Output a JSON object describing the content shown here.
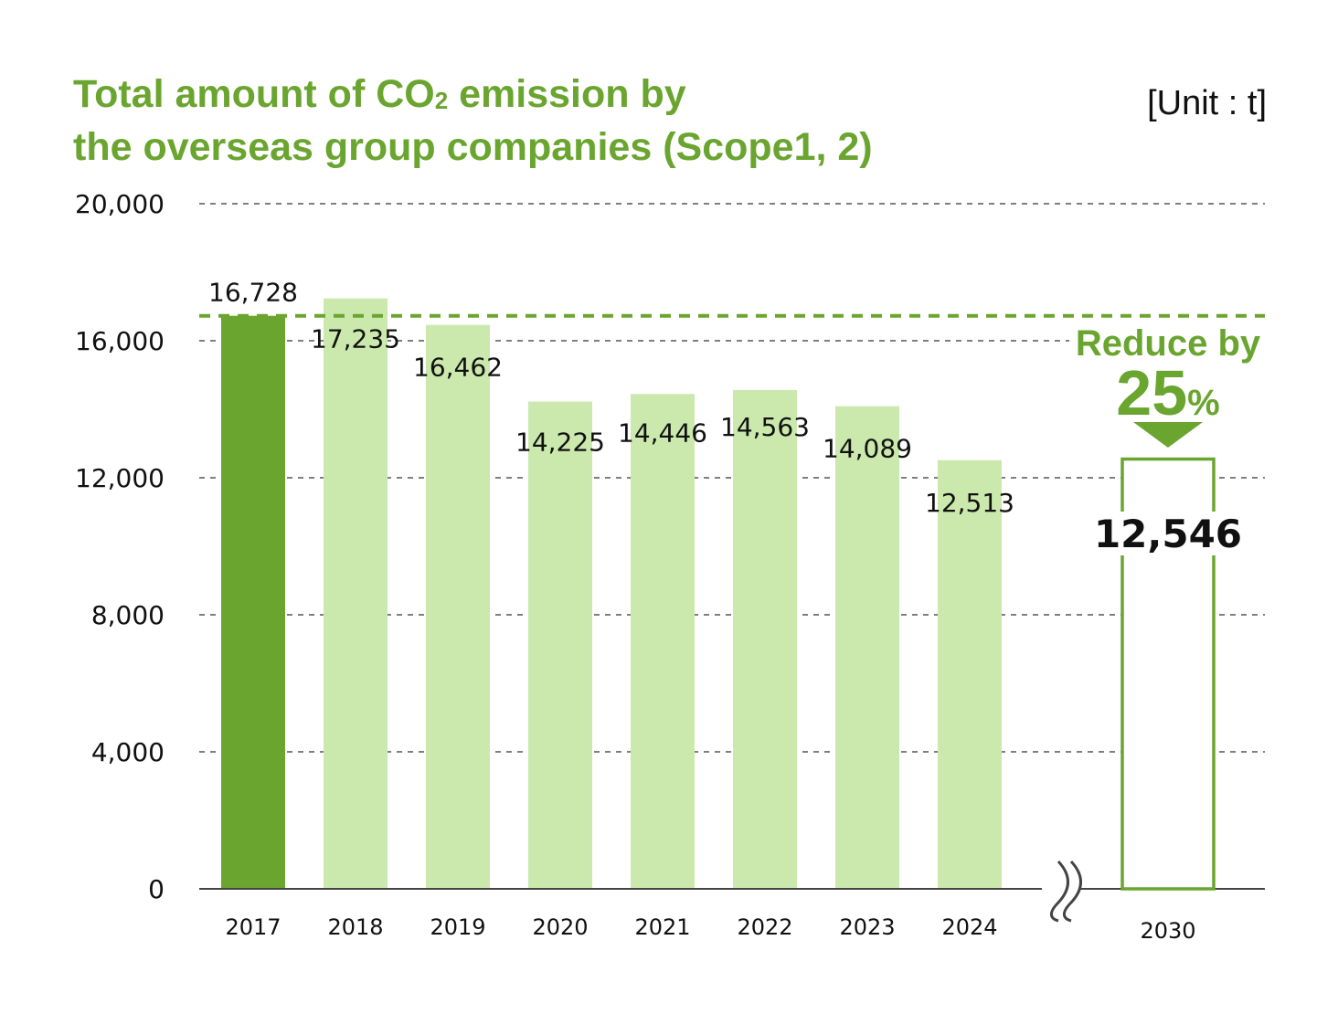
{
  "title_parts": {
    "line1_before": "Total amount of CO",
    "line1_sub": "2",
    "line1_after": " emission by",
    "line2": "the overseas group companies (Scope1, 2)"
  },
  "unit_label": "[Unit : t]",
  "colors": {
    "base_year_bar": "#6aa52f",
    "bar": "#cbe9ad",
    "accent": "#6aa52f",
    "grid": "#555555",
    "text": "#111111"
  },
  "annotation": {
    "reduce_text": "Reduce by",
    "percent_number": "25",
    "percent_sign": "%",
    "baseline_value": 16728
  },
  "chart_data": {
    "type": "bar",
    "title": "Total amount of CO2 emission by the overseas group companies (Scope1, 2)",
    "xlabel": "",
    "ylabel": "[Unit : t]",
    "ylim": [
      0,
      20000
    ],
    "yticks": [
      0,
      4000,
      8000,
      12000,
      16000,
      20000
    ],
    "ytick_labels": [
      "0",
      "4,000",
      "8,000",
      "12,000",
      "16,000",
      "20,000"
    ],
    "grid": true,
    "categories": [
      "2017",
      "2018",
      "2019",
      "2020",
      "2021",
      "2022",
      "2023",
      "2024"
    ],
    "values": [
      16728,
      17235,
      16462,
      14225,
      14446,
      14563,
      14089,
      12513
    ],
    "value_labels": [
      "16,728",
      "17,235",
      "16,462",
      "14,225",
      "14,446",
      "14,563",
      "14,089",
      "12,513"
    ],
    "base_year": "2017",
    "target": {
      "category": "2030",
      "value": 12546,
      "label": "12,546",
      "reduction_percent": 25
    },
    "axis_break": true
  }
}
